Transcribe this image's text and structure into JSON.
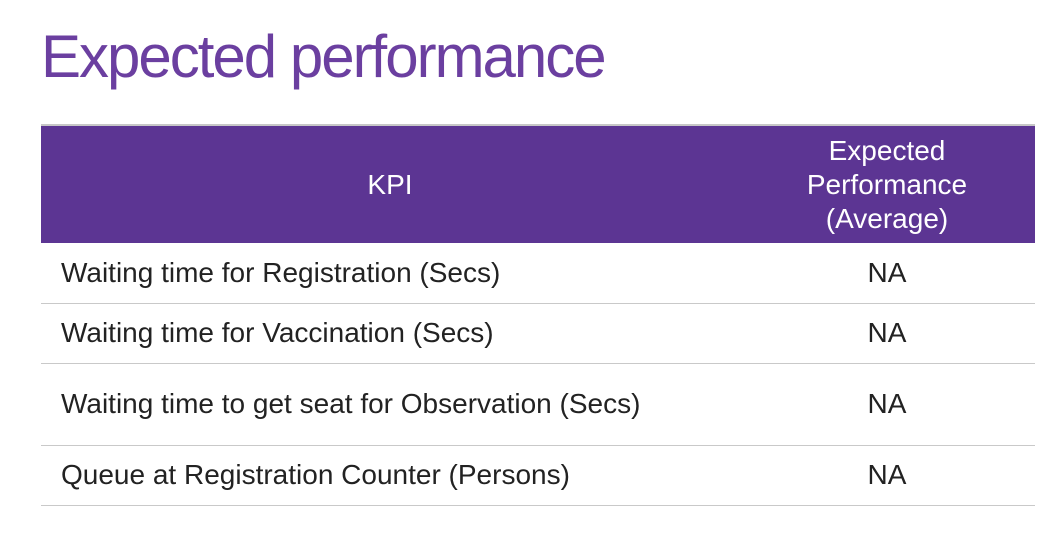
{
  "slide": {
    "title": "Expected performance"
  },
  "table": {
    "headers": {
      "kpi": "KPI",
      "expected_performance": "Expected Performance (Average)"
    },
    "rows": [
      {
        "kpi": "Waiting time for Registration (Secs)",
        "expected": "NA"
      },
      {
        "kpi": "Waiting time for Vaccination (Secs)",
        "expected": "NA"
      },
      {
        "kpi": "Waiting time to get seat for Observation (Secs)",
        "expected": "NA"
      },
      {
        "kpi": "Queue at Registration Counter (Persons)",
        "expected": "NA"
      }
    ]
  },
  "colors": {
    "title": "#6b3fa0",
    "header_background": "#5c3593",
    "header_text": "#ffffff",
    "row_divider": "#c9c9c9"
  }
}
